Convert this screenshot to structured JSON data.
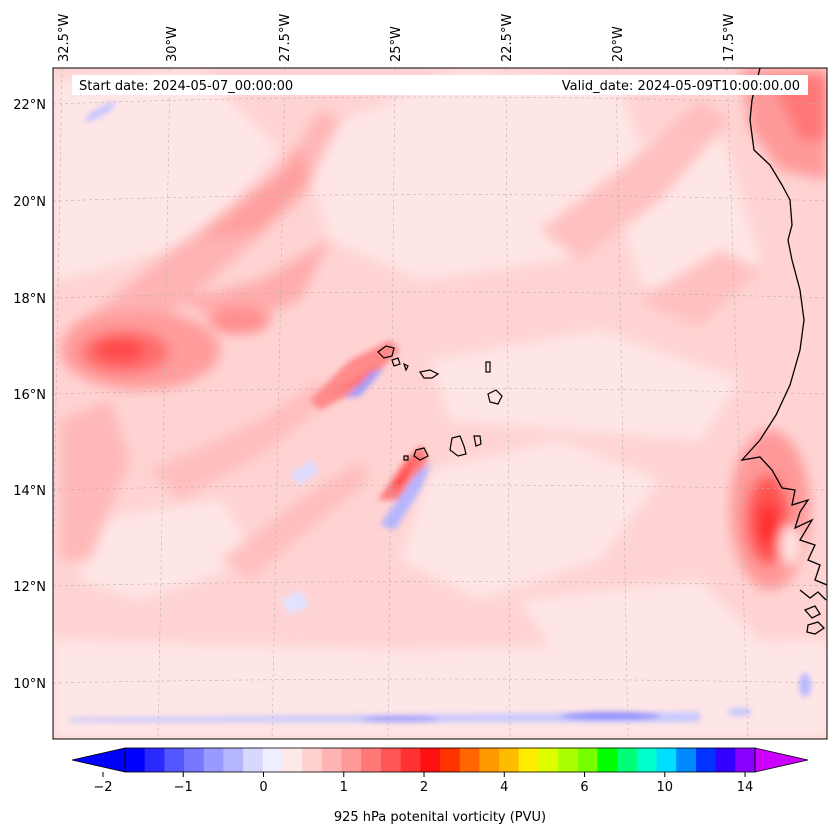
{
  "header": {
    "start_date": "Start date: 2024-05-07_00:00:00",
    "valid_date": "Valid_date: 2024-05-09T10:00:00.00"
  },
  "longitude_labels": [
    "32.5°W",
    "30°W",
    "27.5°W",
    "25°W",
    "22.5°W",
    "20°W",
    "17.5°W"
  ],
  "latitude_labels": [
    "22°N",
    "20°N",
    "18°N",
    "16°N",
    "14°N",
    "12°N",
    "10°N"
  ],
  "colorbar": {
    "label": "925 hPa potenital vorticity (PVU)",
    "tick_labels": [
      "−2",
      "−1",
      "0",
      "1",
      "2",
      "4",
      "6",
      "10",
      "14"
    ],
    "colors": [
      "#0000ff",
      "#2a2aff",
      "#5555ff",
      "#7777ff",
      "#9999ff",
      "#b4b4ff",
      "#d8d8ff",
      "#eeeeff",
      "#ffe8e8",
      "#ffd0d0",
      "#ffb4b4",
      "#ff9999",
      "#ff7777",
      "#ff5555",
      "#ff3333",
      "#ff1111",
      "#ff3300",
      "#ff6600",
      "#ff9900",
      "#ffbb00",
      "#ffee00",
      "#ddff00",
      "#aaff00",
      "#77ff00",
      "#00ff00",
      "#00ff77",
      "#00ffcc",
      "#00ddff",
      "#0088ff",
      "#0033ff",
      "#3300ff",
      "#8800ff"
    ],
    "under_color": "#0000ff",
    "over_color": "#cc00ff"
  },
  "colors": {
    "background_field": "#ffd3d3",
    "coastline": "#000000"
  }
}
